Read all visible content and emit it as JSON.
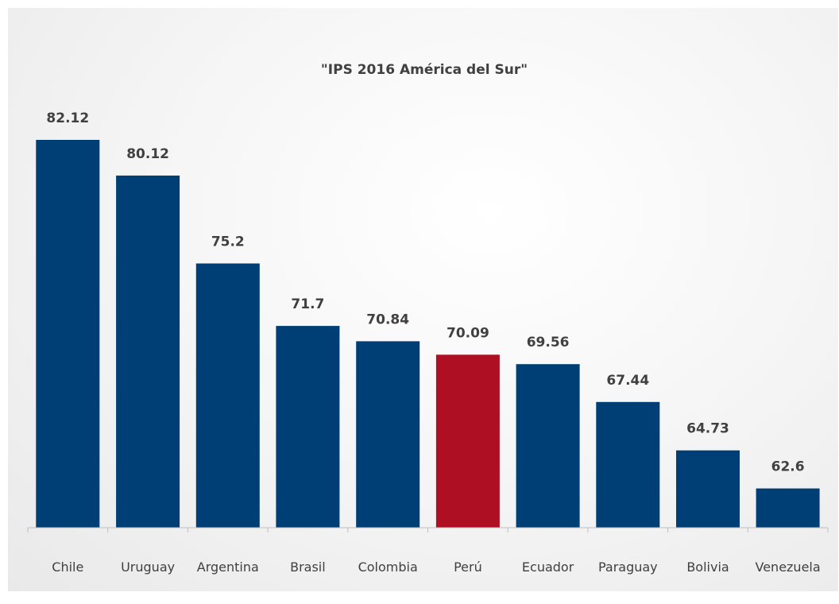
{
  "chart_data": {
    "type": "bar",
    "title": "\"IPS 2016 América del Sur\"",
    "xlabel": "",
    "ylabel": "",
    "categories": [
      "Chile",
      "Uruguay",
      "Argentina",
      "Brasil",
      "Colombia",
      "Perú",
      "Ecuador",
      "Paraguay",
      "Bolivia",
      "Venezuela"
    ],
    "values": [
      82.12,
      80.12,
      75.2,
      71.7,
      70.84,
      70.09,
      69.56,
      67.44,
      64.73,
      62.6
    ],
    "value_labels": [
      "82.12",
      "80.12",
      "75.2",
      "71.7",
      "70.84",
      "70.09",
      "69.56",
      "67.44",
      "64.73",
      "62.6"
    ],
    "ylim": [
      60.4,
      82.12
    ],
    "grid": false,
    "legend": "none",
    "colors": {
      "default_bar": "#003f76",
      "highlight_bar": "#ae0f23",
      "axis": "#bfbfbf",
      "text": "#404040"
    },
    "highlight_category": "Perú"
  }
}
